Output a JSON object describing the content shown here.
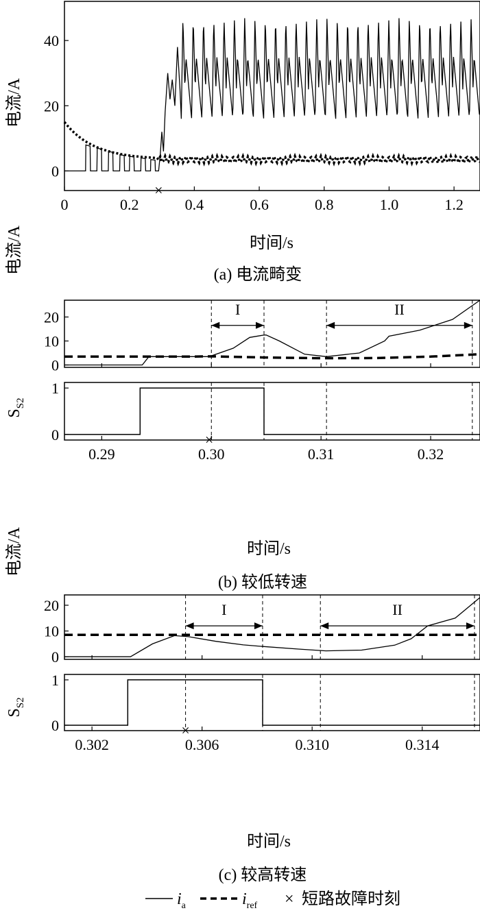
{
  "colors": {
    "ink": "#000000",
    "background": "#ffffff"
  },
  "legend": {
    "ia_base": "i",
    "ia_sub": "a",
    "iref_base": "i",
    "iref_sub": "ref",
    "fault_marker": "×",
    "fault_label": "短路故障时刻"
  },
  "chart_data": [
    {
      "id": "a",
      "type": "line",
      "caption": "(a) 电流畸变",
      "xlabel": "时间/s",
      "ylabel": "电流/A",
      "xlim": [
        0,
        1.28
      ],
      "ylim": [
        -6,
        52
      ],
      "xticks": [
        0,
        0.2,
        0.4,
        0.6,
        0.8,
        1.0,
        1.2
      ],
      "xtick_labels": [
        "0",
        "0.2",
        "0.4",
        "0.6",
        "0.8",
        "1.0",
        "1.2"
      ],
      "yticks": [
        0,
        20,
        40
      ],
      "ytick_labels": [
        "0",
        "20",
        "40"
      ],
      "fault_time": 0.29,
      "ia_pulses_before_fault": {
        "times": [
          0.065,
          0.1,
          0.135,
          0.17,
          0.2,
          0.235,
          0.265
        ],
        "peaks": [
          8,
          7,
          6,
          5,
          4.5,
          4,
          3.5
        ]
      },
      "ia_after_fault": {
        "rise_start": 0.29,
        "steady_from": 0.36,
        "min": 16,
        "max": 47,
        "secondary_peak": 35,
        "period": 0.0317
      },
      "iref": {
        "start": 15,
        "settle": 3.5,
        "tau": 0.09,
        "ripple": 1
      }
    },
    {
      "id": "b",
      "type": "line",
      "caption": "(b) 较低转速",
      "xlabel": "时间/s",
      "ylabel": "电流/A",
      "ylabel2_base": "S",
      "ylabel2_sub": "S2",
      "xlim": [
        0.2866,
        0.3245
      ],
      "ylim": [
        -1,
        27
      ],
      "xticks": [
        0.29,
        0.3,
        0.31,
        0.32
      ],
      "xtick_labels": [
        "0.29",
        "0.30",
        "0.31",
        "0.32"
      ],
      "yticks": [
        0,
        10,
        20
      ],
      "ytick_labels": [
        "0",
        "10",
        "20"
      ],
      "s_yticks": [
        0,
        1
      ],
      "s_ytick_labels": [
        "0",
        "1"
      ],
      "fault_time": 0.2998,
      "ia": {
        "x": [
          0.2866,
          0.2937,
          0.2943,
          0.2998,
          0.302,
          0.3035,
          0.3048,
          0.305,
          0.3062,
          0.3085,
          0.3105,
          0.3135,
          0.3158,
          0.3162,
          0.319,
          0.322,
          0.3245
        ],
        "y": [
          0,
          0,
          3.5,
          3.5,
          7,
          11.5,
          12.5,
          12.5,
          10,
          4.5,
          3.5,
          5,
          10,
          12,
          14.5,
          19,
          27
        ]
      },
      "iref": {
        "x": [
          0.2866,
          0.298,
          0.3,
          0.305,
          0.31,
          0.315,
          0.32,
          0.3245
        ],
        "y": [
          3.5,
          3.5,
          3.6,
          3.1,
          2.8,
          2.9,
          3.5,
          4.5
        ]
      },
      "s_s2": {
        "x": [
          0.2866,
          0.2935,
          0.2935,
          0.3048,
          0.3048,
          0.3245
        ],
        "y": [
          0,
          0,
          1,
          1,
          0,
          0
        ]
      },
      "vlines": [
        0.3,
        0.3048,
        0.3105,
        0.3238
      ],
      "interval_I": {
        "label": "I",
        "from": 0.3,
        "to": 0.3048,
        "y": 16.5
      },
      "interval_II": {
        "label": "II",
        "from": 0.3105,
        "to": 0.3238,
        "y": 16.5
      }
    },
    {
      "id": "c",
      "type": "line",
      "caption": "(c) 较高转速",
      "xlabel": "时间/s",
      "ylabel": "电流/A",
      "ylabel2_base": "S",
      "ylabel2_sub": "S2",
      "xlim": [
        0.301,
        0.3161
      ],
      "ylim": [
        -1,
        24
      ],
      "xticks": [
        0.302,
        0.306,
        0.31,
        0.314
      ],
      "xtick_labels": [
        "0.302",
        "0.306",
        "0.310",
        "0.314"
      ],
      "yticks": [
        0,
        10,
        20
      ],
      "ytick_labels": [
        "0",
        "10",
        "20"
      ],
      "s_yticks": [
        0,
        1
      ],
      "s_ytick_labels": [
        "0",
        "1"
      ],
      "fault_time": 0.3054,
      "ia": {
        "x": [
          0.301,
          0.3034,
          0.3042,
          0.305,
          0.3055,
          0.3065,
          0.3075,
          0.3082,
          0.3095,
          0.3105,
          0.3118,
          0.313,
          0.3136,
          0.3142,
          0.3152,
          0.3161
        ],
        "y": [
          0,
          0,
          5,
          8.2,
          7.8,
          6,
          4.6,
          4,
          3,
          2.3,
          2.6,
          4.5,
          7,
          12,
          15,
          23
        ]
      },
      "iref": {
        "x": [
          0.301,
          0.3161
        ],
        "y": [
          8.5,
          8.5
        ]
      },
      "s_s2": {
        "x": [
          0.301,
          0.3033,
          0.3033,
          0.3082,
          0.3082,
          0.3161
        ],
        "y": [
          0,
          0,
          1,
          1,
          0,
          0
        ]
      },
      "vlines": [
        0.3054,
        0.3082,
        0.3103,
        0.3159
      ],
      "interval_I": {
        "label": "I",
        "from": 0.3054,
        "to": 0.3082,
        "y": 12
      },
      "interval_II": {
        "label": "II",
        "from": 0.3103,
        "to": 0.3159,
        "y": 12
      }
    }
  ]
}
